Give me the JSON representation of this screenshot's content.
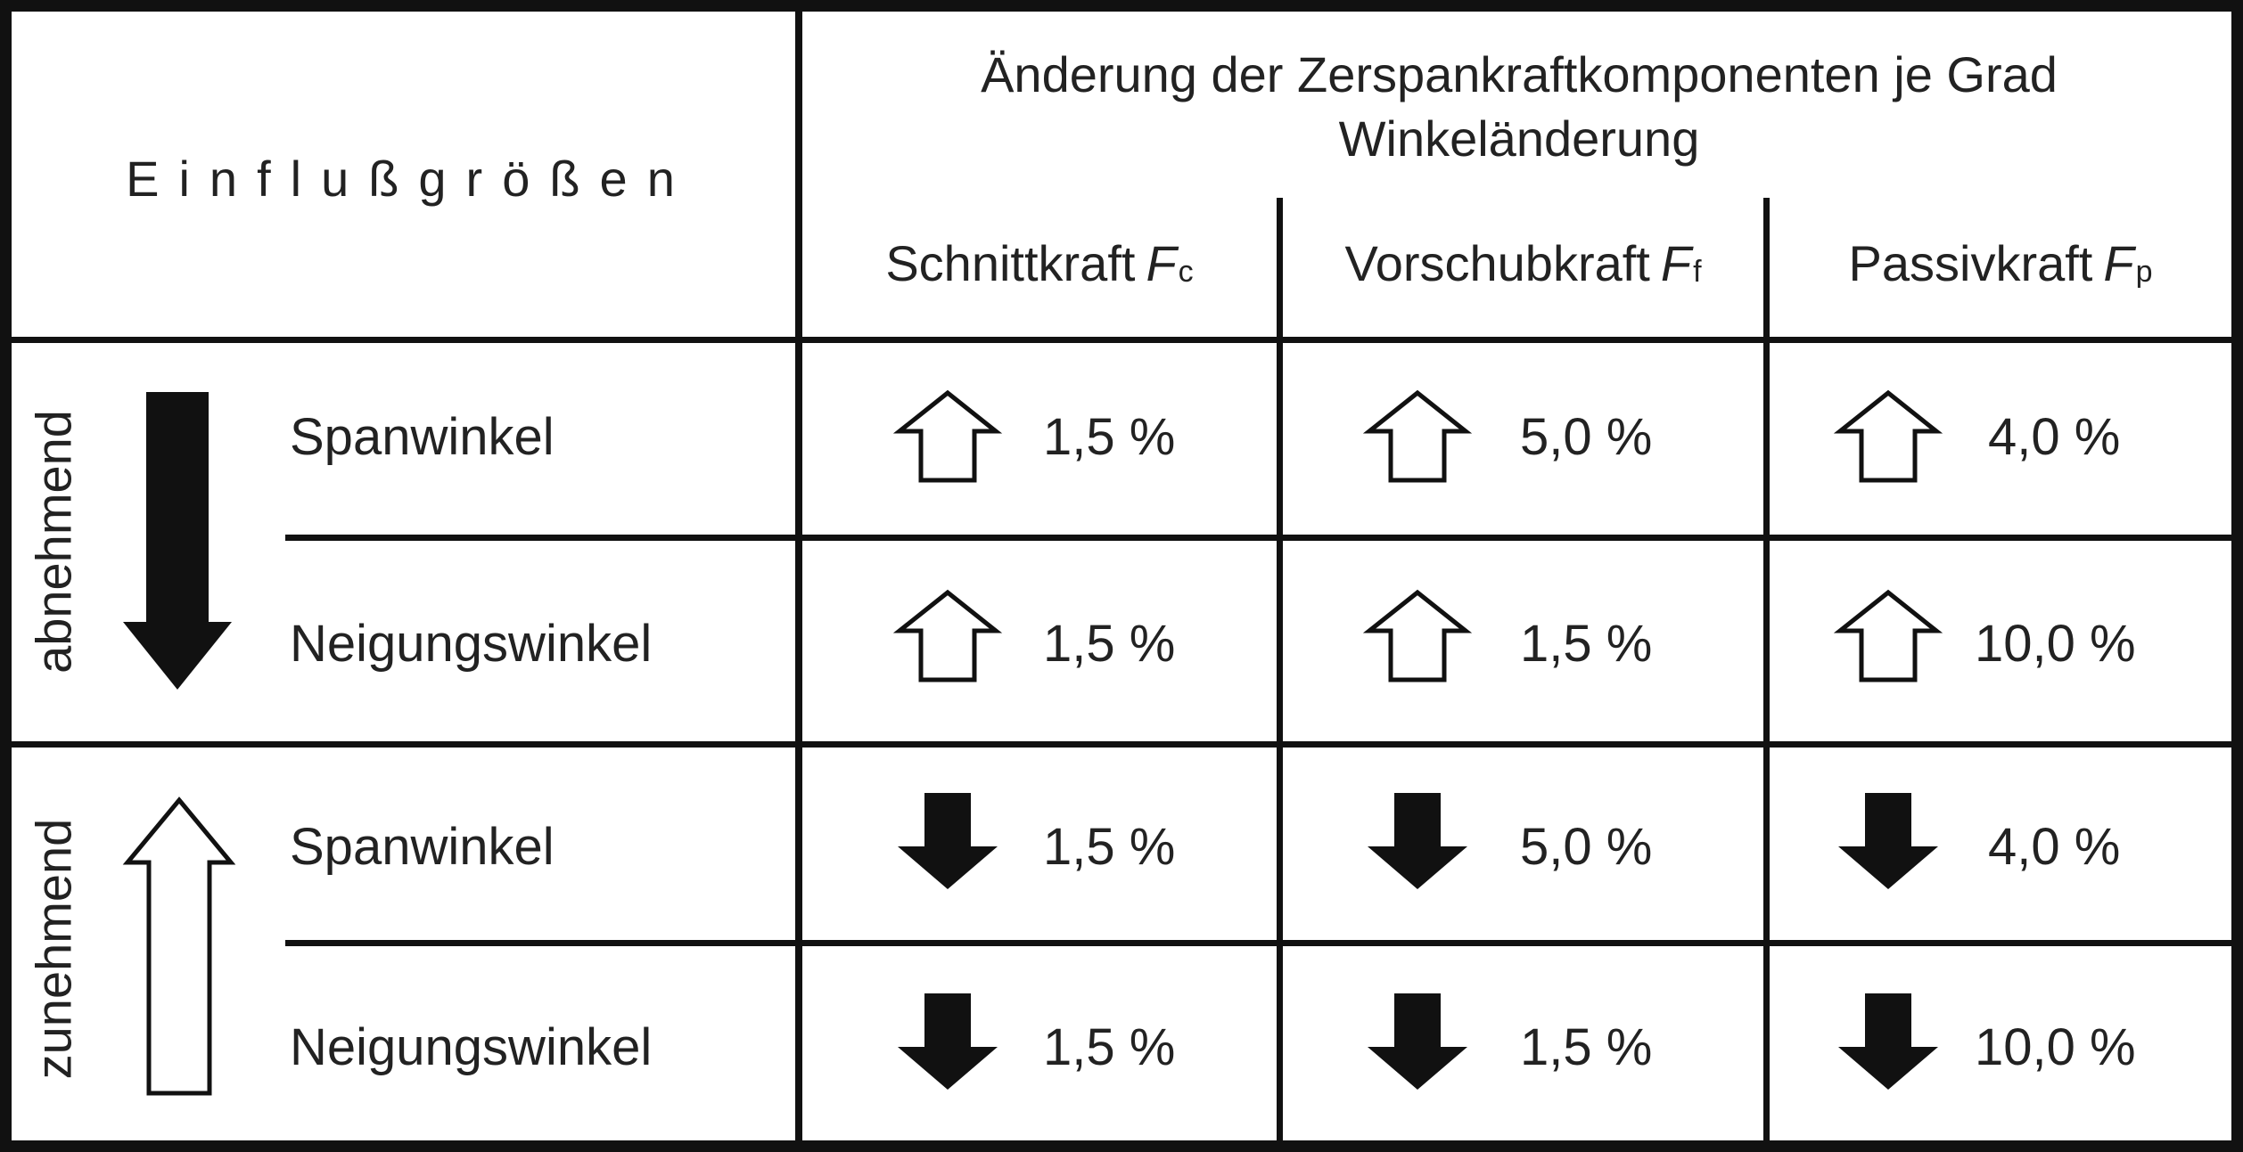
{
  "header": {
    "influences_label": "Einflußgrößen",
    "title_line1": "Änderung der Zerspankraftkomponenten je Grad",
    "title_line2": "Winkeländerung"
  },
  "columns": [
    {
      "label": "Schnittkraft",
      "symbol": "F",
      "subscript": "c"
    },
    {
      "label": "Vorschubkraft",
      "symbol": "F",
      "subscript": "f"
    },
    {
      "label": "Passivkraft",
      "symbol": "F",
      "subscript": "p"
    }
  ],
  "groups": [
    {
      "label": "abnehmend",
      "direction": "down",
      "arrow_style": "filled",
      "rows": [
        {
          "label": "Spanwinkel",
          "values": [
            "1,5 %",
            "5,0 %",
            "4,0 %"
          ],
          "trend": "up"
        },
        {
          "label": "Neigungswinkel",
          "values": [
            "1,5 %",
            "1,5 %",
            "10,0 %"
          ],
          "trend": "up"
        }
      ]
    },
    {
      "label": "zunehmend",
      "direction": "up",
      "arrow_style": "outline",
      "rows": [
        {
          "label": "Spanwinkel",
          "values": [
            "1,5 %",
            "5,0 %",
            "4,0 %"
          ],
          "trend": "down"
        },
        {
          "label": "Neigungswinkel",
          "values": [
            "1,5 %",
            "1,5 %",
            "10,0 %"
          ],
          "trend": "down"
        }
      ]
    }
  ],
  "icons": {
    "increase": "outline-up-arrow-icon",
    "decrease": "filled-down-arrow-icon"
  },
  "colors": {
    "line": "#111111",
    "text": "#222222",
    "background": "#ffffff"
  }
}
